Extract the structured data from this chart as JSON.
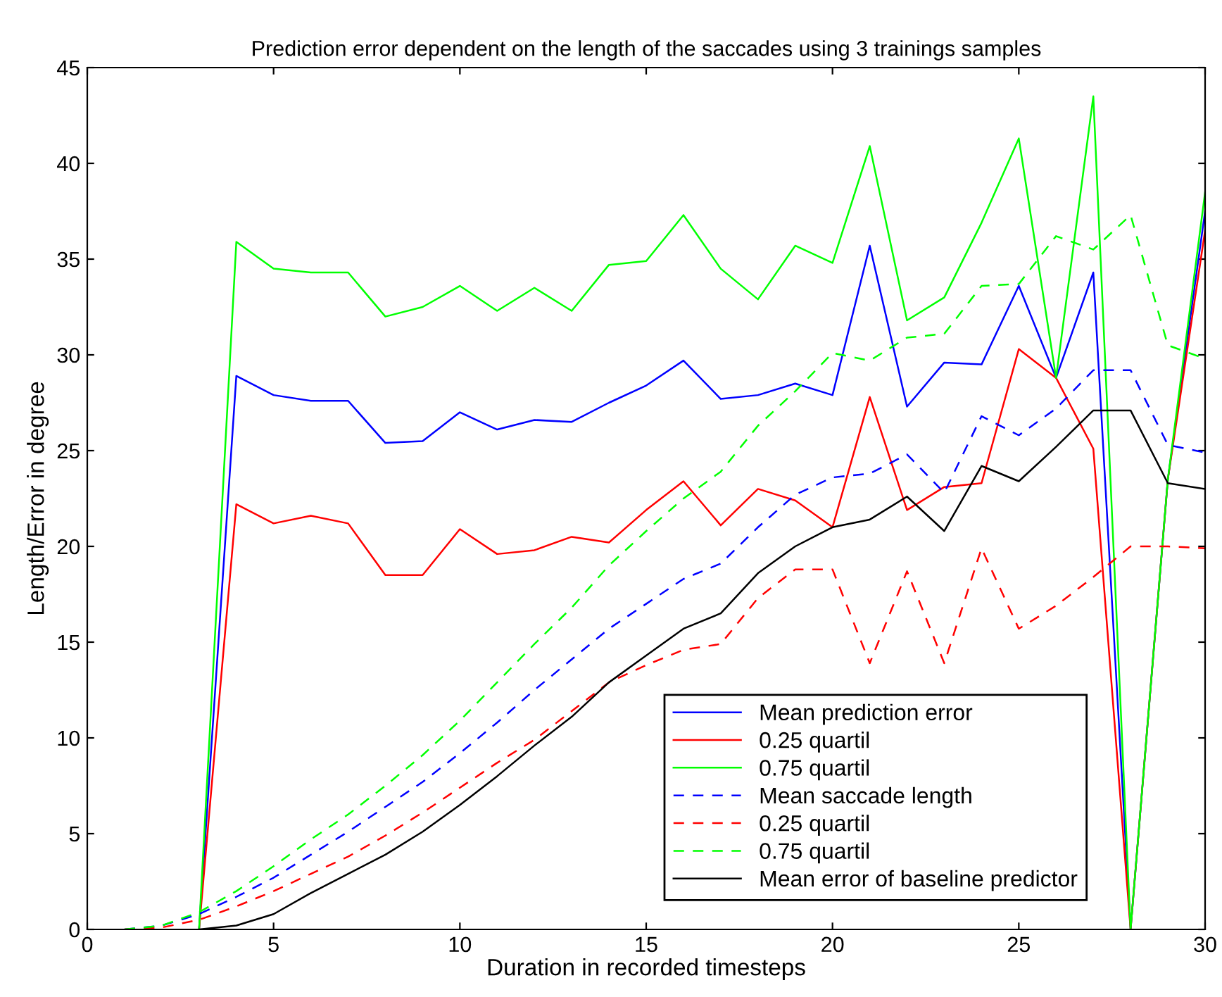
{
  "chart_data": {
    "type": "line",
    "title": "Prediction error dependent on the length of the saccades using 3 trainings samples",
    "xlabel": "Duration in recorded timesteps",
    "ylabel": "Length/Error in degree",
    "x": [
      1,
      2,
      3,
      4,
      5,
      6,
      7,
      8,
      9,
      10,
      11,
      12,
      13,
      14,
      15,
      16,
      17,
      18,
      19,
      20,
      21,
      22,
      23,
      24,
      25,
      26,
      27,
      28,
      29,
      30
    ],
    "xlim": [
      0,
      30
    ],
    "xticks": [
      0,
      5,
      10,
      15,
      20,
      25,
      30
    ],
    "ylim": [
      0,
      45
    ],
    "yticks": [
      0,
      5,
      10,
      15,
      20,
      25,
      30,
      35,
      40,
      45
    ],
    "grid": false,
    "legend": "bottom right",
    "marker": "none",
    "series": [
      {
        "name": "Mean prediction error",
        "color": "#0000ff",
        "line_style": "solid",
        "values": [
          null,
          null,
          0,
          28.9,
          27.9,
          27.6,
          27.6,
          25.4,
          25.5,
          27.0,
          26.1,
          26.6,
          26.5,
          27.5,
          28.4,
          29.7,
          27.7,
          27.9,
          28.5,
          27.9,
          35.7,
          27.3,
          29.6,
          29.5,
          33.6,
          28.8,
          34.3,
          0,
          23.5,
          37.5
        ]
      },
      {
        "name": "0.25 quartil",
        "color": "#ff0000",
        "line_style": "solid",
        "values": [
          null,
          null,
          0,
          22.2,
          21.2,
          21.6,
          21.2,
          18.5,
          18.5,
          20.9,
          19.6,
          19.8,
          20.5,
          20.2,
          21.9,
          23.4,
          21.1,
          23.0,
          22.4,
          21.0,
          27.8,
          21.9,
          23.1,
          23.3,
          30.3,
          28.8,
          25.1,
          0,
          23.5,
          36.5
        ]
      },
      {
        "name": "0.75 quartil",
        "color": "#00ff00",
        "line_style": "solid",
        "values": [
          null,
          null,
          0,
          35.9,
          34.5,
          34.3,
          34.3,
          32.0,
          32.5,
          33.6,
          32.3,
          33.5,
          32.3,
          34.7,
          34.9,
          37.3,
          34.5,
          32.9,
          35.7,
          34.8,
          40.9,
          31.8,
          33.0,
          36.9,
          41.3,
          28.8,
          43.5,
          0,
          23.5,
          38.5
        ]
      },
      {
        "name": "Mean saccade length",
        "color": "#0000ff",
        "line_style": "dashed",
        "values": [
          0,
          0.2,
          0.8,
          1.7,
          2.7,
          3.9,
          5.1,
          6.4,
          7.7,
          9.2,
          10.8,
          12.5,
          14.1,
          15.7,
          17.0,
          18.3,
          19.1,
          21.0,
          22.7,
          23.6,
          23.8,
          24.8,
          22.8,
          26.8,
          25.8,
          27.2,
          29.2,
          29.2,
          25.3,
          24.9
        ]
      },
      {
        "name": "0.25 quartil",
        "color": "#ff0000",
        "line_style": "dashed",
        "values": [
          0,
          0.1,
          0.5,
          1.2,
          2.0,
          2.9,
          3.8,
          4.9,
          6.1,
          7.4,
          8.7,
          9.9,
          11.4,
          12.9,
          13.8,
          14.6,
          14.9,
          17.3,
          18.8,
          18.8,
          13.9,
          18.7,
          13.9,
          19.9,
          15.7,
          16.9,
          18.4,
          20.0,
          20.0,
          19.9
        ]
      },
      {
        "name": "0.75 quartil",
        "color": "#00ff00",
        "line_style": "dashed",
        "values": [
          0,
          0.2,
          0.9,
          2.0,
          3.3,
          4.7,
          6.0,
          7.5,
          9.1,
          10.9,
          12.9,
          14.9,
          16.8,
          19.0,
          20.8,
          22.5,
          23.9,
          26.3,
          28.1,
          30.1,
          29.7,
          30.9,
          31.1,
          33.6,
          33.7,
          36.2,
          35.5,
          37.3,
          30.5,
          29.8
        ]
      },
      {
        "name": "Mean error of baseline predictor",
        "color": "#000000",
        "line_style": "solid",
        "values": [
          null,
          null,
          0,
          0.2,
          0.8,
          1.9,
          2.9,
          3.9,
          5.1,
          6.5,
          8.0,
          9.6,
          11.1,
          12.9,
          14.3,
          15.7,
          16.5,
          18.6,
          20.0,
          21.0,
          21.4,
          22.6,
          20.8,
          24.2,
          23.4,
          25.2,
          27.1,
          27.1,
          23.3,
          23.0
        ]
      }
    ]
  }
}
